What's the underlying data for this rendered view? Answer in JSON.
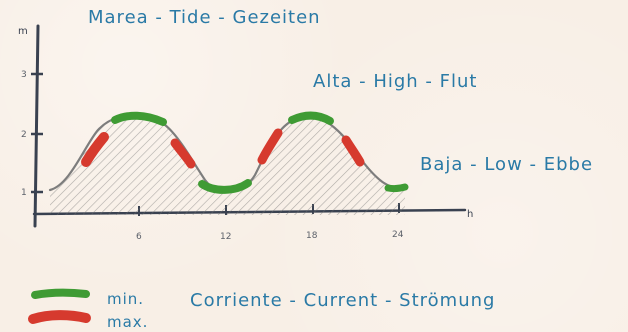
{
  "title": "Marea - Tide - Gezeiten",
  "label_high": "Alta - High - Flut",
  "label_low": "Baja - Low - Ebbe",
  "current_title": "Corriente - Current - Strömung",
  "legend": {
    "min_label": "min.",
    "max_label": "max."
  },
  "axes": {
    "y_unit": "m",
    "x_unit": "h",
    "y_ticks": [
      "1",
      "2",
      "3"
    ],
    "x_ticks": [
      "6",
      "12",
      "18",
      "24"
    ]
  },
  "colors": {
    "text": "#2a7aa6",
    "min_current": "#3f9b34",
    "max_current": "#d63a2e",
    "axis": "#394150"
  }
}
